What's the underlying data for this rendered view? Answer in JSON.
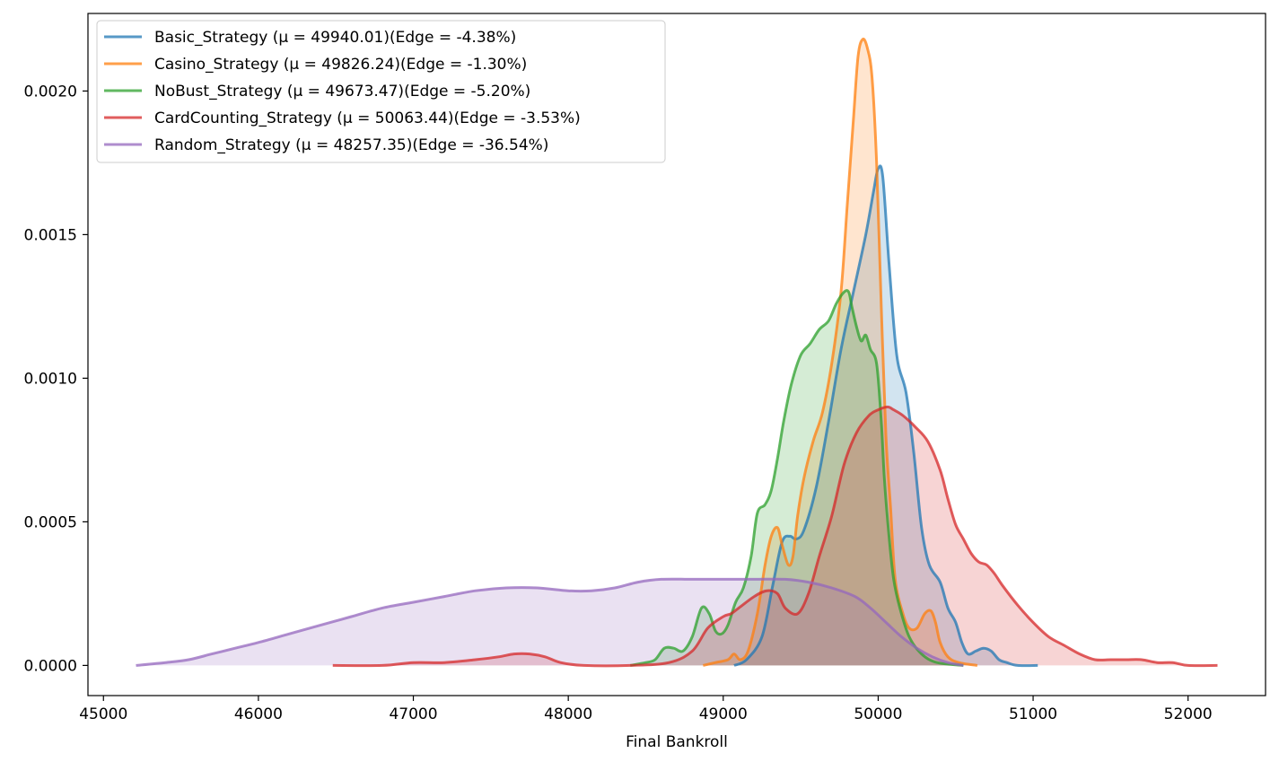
{
  "chart_data": {
    "type": "area",
    "title": "",
    "xlabel": "Final Bankroll",
    "ylabel": "",
    "xlim": [
      44900,
      52500
    ],
    "ylim": [
      -0.000105,
      0.00227
    ],
    "x_ticks": [
      45000,
      46000,
      47000,
      48000,
      49000,
      50000,
      51000,
      52000
    ],
    "x_tick_labels": [
      "45000",
      "46000",
      "47000",
      "48000",
      "49000",
      "50000",
      "51000",
      "52000"
    ],
    "y_ticks": [
      0,
      0.0005,
      0.001,
      0.0015,
      0.002
    ],
    "y_tick_labels": [
      "0.0000",
      "0.0005",
      "0.0010",
      "0.0015",
      "0.0020"
    ],
    "grid": false,
    "legend_position": "top-left",
    "series": [
      {
        "name": "Basic_Strategy (μ = 49940.01)(Edge = -4.38%)",
        "color": "#1f77b4",
        "x": [
          49070,
          49150,
          49250,
          49320,
          49380,
          49430,
          49470,
          49520,
          49600,
          49680,
          49760,
          49840,
          49920,
          49970,
          50000,
          50030,
          50070,
          50120,
          50180,
          50230,
          50280,
          50330,
          50400,
          50450,
          50500,
          50540,
          50580,
          50630,
          50680,
          50730,
          50780,
          50830,
          50900,
          51030
        ],
        "y": [
          0.0,
          2e-05,
          0.0001,
          0.00028,
          0.00043,
          0.00045,
          0.00044,
          0.00047,
          0.00062,
          0.00085,
          0.0011,
          0.0013,
          0.0015,
          0.00165,
          0.00173,
          0.0017,
          0.0014,
          0.00108,
          0.00095,
          0.00074,
          0.00048,
          0.00035,
          0.00029,
          0.0002,
          0.00015,
          8e-05,
          4e-05,
          5e-05,
          6e-05,
          5e-05,
          2e-05,
          1e-05,
          0.0,
          0.0
        ]
      },
      {
        "name": "Casino_Strategy (μ = 49826.24)(Edge = -1.30%)",
        "color": "#ff7f0e",
        "x": [
          48870,
          48950,
          49030,
          49070,
          49110,
          49160,
          49220,
          49270,
          49310,
          49350,
          49380,
          49420,
          49450,
          49480,
          49520,
          49580,
          49640,
          49700,
          49760,
          49800,
          49840,
          49870,
          49900,
          49930,
          49960,
          49990,
          50020,
          50050,
          50080,
          50110,
          50160,
          50200,
          50250,
          50300,
          50340,
          50370,
          50400,
          50450,
          50520,
          50640
        ],
        "y": [
          0.0,
          1e-05,
          2e-05,
          4e-05,
          2e-05,
          5e-05,
          0.00018,
          0.00035,
          0.00045,
          0.00048,
          0.00042,
          0.00035,
          0.00038,
          0.00052,
          0.00065,
          0.00078,
          0.00088,
          0.00105,
          0.0013,
          0.0016,
          0.0019,
          0.00212,
          0.00218,
          0.00215,
          0.00205,
          0.00175,
          0.00125,
          0.0008,
          0.00055,
          0.0003,
          0.00018,
          0.00013,
          0.00013,
          0.00018,
          0.00019,
          0.00015,
          8e-05,
          3e-05,
          1e-05,
          0.0
        ]
      },
      {
        "name": "NoBust_Strategy (μ = 49673.47)(Edge = -5.20%)",
        "color": "#2ca02c",
        "x": [
          48400,
          48500,
          48560,
          48620,
          48680,
          48740,
          48800,
          48860,
          48910,
          48950,
          48990,
          49030,
          49080,
          49130,
          49180,
          49220,
          49270,
          49310,
          49350,
          49390,
          49440,
          49500,
          49560,
          49620,
          49680,
          49730,
          49780,
          49810,
          49830,
          49860,
          49890,
          49920,
          49950,
          49990,
          50020,
          50040,
          50070,
          50100,
          50140,
          50200,
          50280,
          50380,
          50550
        ],
        "y": [
          0.0,
          1e-05,
          2e-05,
          6e-05,
          6e-05,
          5e-05,
          0.0001,
          0.0002,
          0.00018,
          0.00012,
          0.00011,
          0.00014,
          0.00022,
          0.00027,
          0.00038,
          0.00053,
          0.00056,
          0.00061,
          0.00072,
          0.00085,
          0.00098,
          0.00108,
          0.00112,
          0.00117,
          0.0012,
          0.00126,
          0.0013,
          0.0013,
          0.00125,
          0.00118,
          0.00113,
          0.00115,
          0.0011,
          0.00105,
          0.00085,
          0.00065,
          0.00045,
          0.0003,
          0.0002,
          0.0001,
          4e-05,
          1e-05,
          0.0
        ]
      },
      {
        "name": "CardCounting_Strategy (μ = 50063.44)(Edge = -3.53%)",
        "color": "#d62728",
        "x": [
          46480,
          46800,
          47000,
          47200,
          47400,
          47550,
          47650,
          47750,
          47850,
          47950,
          48100,
          48400,
          48650,
          48800,
          48900,
          49000,
          49050,
          49100,
          49200,
          49280,
          49350,
          49400,
          49480,
          49550,
          49620,
          49700,
          49780,
          49860,
          49940,
          50000,
          50060,
          50100,
          50160,
          50240,
          50320,
          50400,
          50450,
          50500,
          50550,
          50600,
          50650,
          50700,
          50750,
          50800,
          50900,
          51000,
          51100,
          51200,
          51300,
          51400,
          51500,
          51600,
          51700,
          51800,
          51900,
          52000,
          52190
        ],
        "y": [
          0.0,
          0.0,
          1e-05,
          1e-05,
          2e-05,
          3e-05,
          4e-05,
          4e-05,
          3e-05,
          1e-05,
          0.0,
          0.0,
          1e-05,
          5e-05,
          0.00013,
          0.00017,
          0.00018,
          0.0002,
          0.00024,
          0.00026,
          0.00025,
          0.0002,
          0.00018,
          0.00025,
          0.00038,
          0.00052,
          0.0007,
          0.00081,
          0.00087,
          0.00089,
          0.0009,
          0.00089,
          0.00087,
          0.00083,
          0.00078,
          0.00068,
          0.00058,
          0.00049,
          0.00044,
          0.00039,
          0.00036,
          0.00035,
          0.00032,
          0.00028,
          0.00021,
          0.00015,
          0.0001,
          7e-05,
          4e-05,
          2e-05,
          2e-05,
          2e-05,
          2e-05,
          1e-05,
          1e-05,
          0.0,
          0.0
        ]
      },
      {
        "name": "Random_Strategy (μ = 48257.35)(Edge = -36.54%)",
        "color": "#9467bd",
        "x": [
          45210,
          45400,
          45550,
          45700,
          45850,
          46000,
          46200,
          46400,
          46600,
          46800,
          47000,
          47200,
          47400,
          47600,
          47800,
          48000,
          48150,
          48300,
          48450,
          48600,
          48800,
          49000,
          49200,
          49400,
          49550,
          49700,
          49850,
          49950,
          50050,
          50150,
          50250,
          50350,
          50450,
          50550
        ],
        "y": [
          0.0,
          1e-05,
          2e-05,
          4e-05,
          6e-05,
          8e-05,
          0.00011,
          0.00014,
          0.00017,
          0.0002,
          0.00022,
          0.00024,
          0.00026,
          0.00027,
          0.00027,
          0.00026,
          0.00026,
          0.00027,
          0.00029,
          0.0003,
          0.0003,
          0.0003,
          0.0003,
          0.0003,
          0.00029,
          0.00027,
          0.00024,
          0.0002,
          0.00015,
          0.0001,
          6e-05,
          3e-05,
          1e-05,
          0.0
        ]
      }
    ]
  }
}
